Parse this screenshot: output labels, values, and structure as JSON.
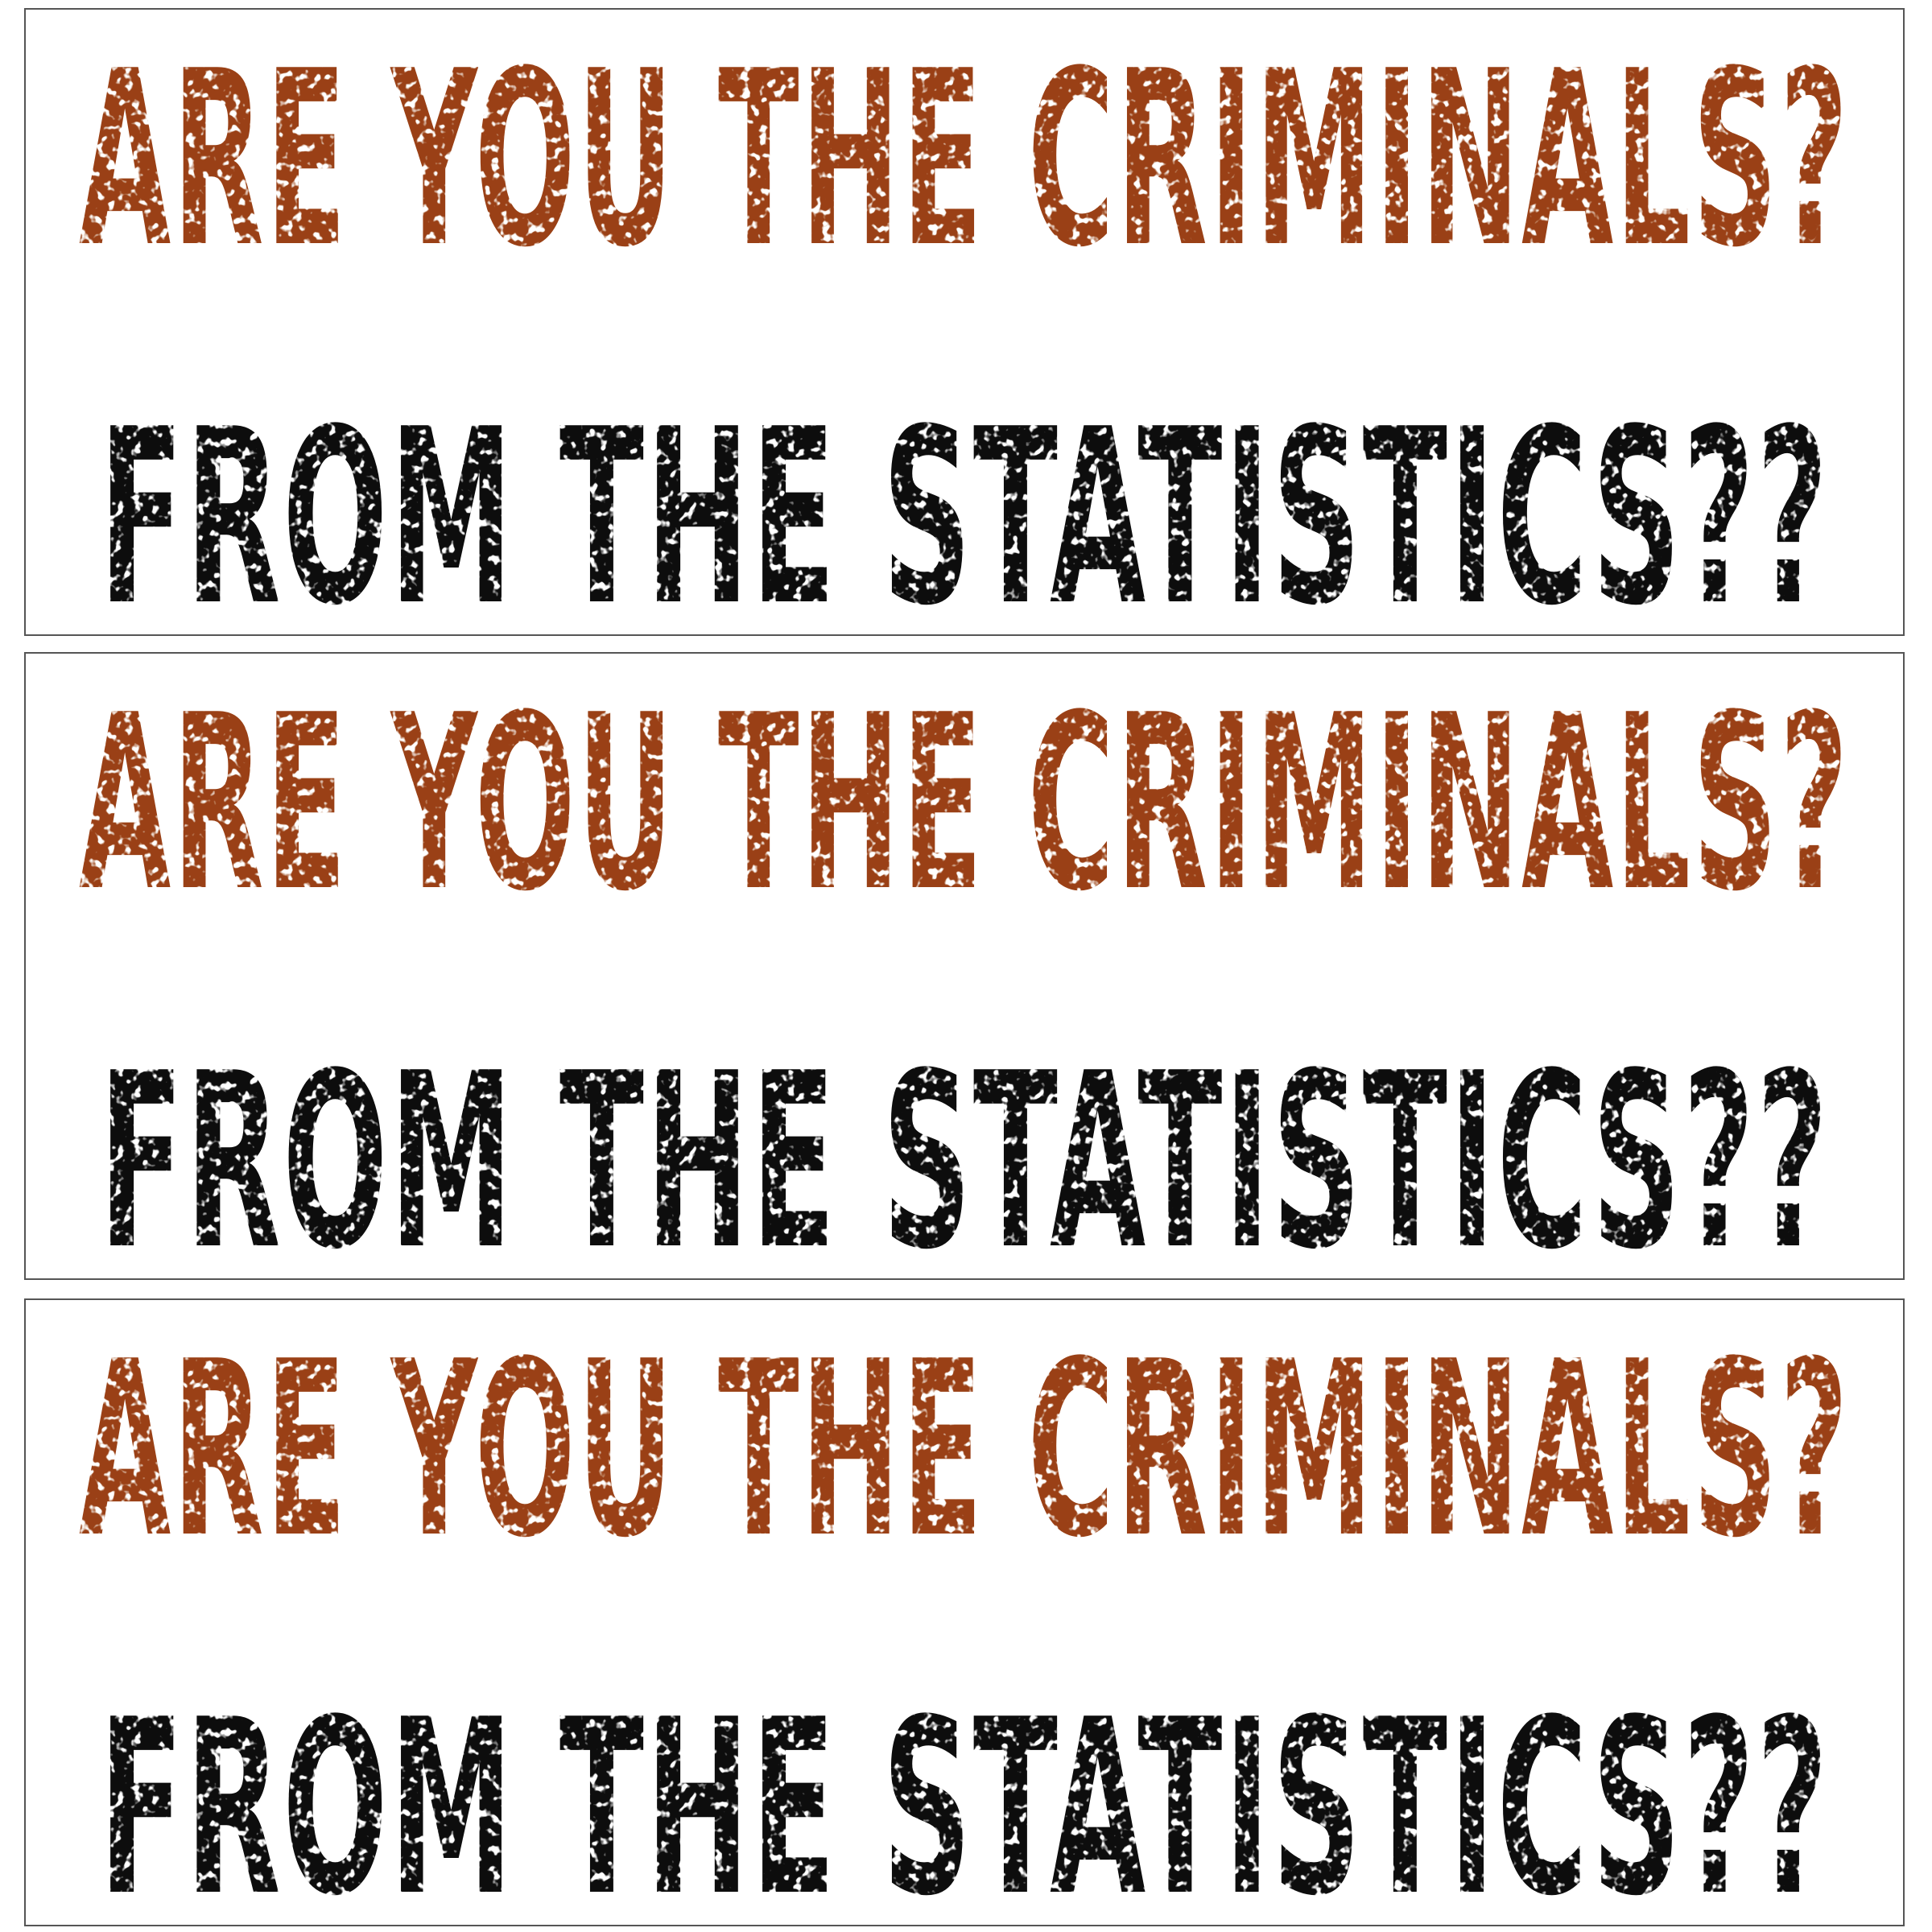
{
  "stickers": [
    {
      "line1": "ARE YOU THE CRIMINALS?",
      "line2": "FROM THE STATISTICS??"
    },
    {
      "line1": "ARE YOU THE CRIMINALS?",
      "line2": "FROM THE STATISTICS??"
    },
    {
      "line1": "ARE YOU THE CRIMINALS?",
      "line2": "FROM THE STATISTICS??"
    }
  ],
  "colors": {
    "line1": "#9a4114",
    "line2": "#0a0a0a",
    "border": "#555555",
    "background": "#ffffff"
  }
}
